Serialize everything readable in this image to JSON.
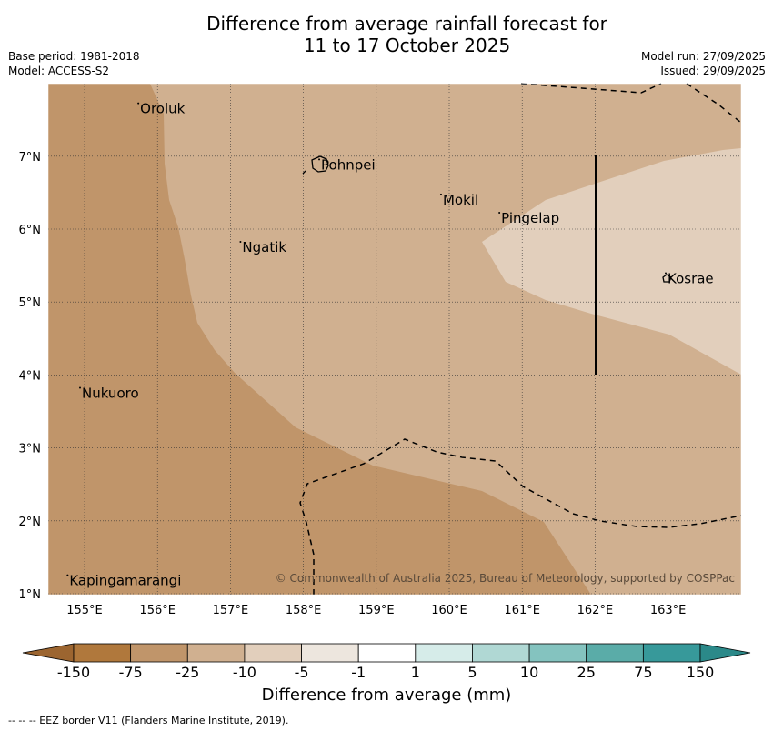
{
  "title_line1": "Difference from average rainfall forecast for",
  "title_line2": "11 to 17 October 2025",
  "meta_left": [
    "Base period: 1981-2018",
    "Model: ACCESS-S2"
  ],
  "meta_right": [
    "Model run: 27/09/2025",
    "Issued: 29/09/2025"
  ],
  "lon_ticks": [
    "155°E",
    "156°E",
    "157°E",
    "158°E",
    "159°E",
    "160°E",
    "161°E",
    "162°E",
    "163°E"
  ],
  "lat_ticks": [
    "7°N",
    "6°N",
    "5°N",
    "4°N",
    "3°N",
    "2°N",
    "1°N"
  ],
  "places": [
    {
      "name": "Oroluk",
      "lon": 155.75,
      "lat": 7.65
    },
    {
      "name": "Pohnpei",
      "lon": 158.23,
      "lat": 6.88
    },
    {
      "name": "Mokil",
      "lon": 159.9,
      "lat": 6.4
    },
    {
      "name": "Pingelap",
      "lon": 160.7,
      "lat": 6.15
    },
    {
      "name": "Ngatik",
      "lon": 157.15,
      "lat": 5.75
    },
    {
      "name": "Kosrae",
      "lon": 162.98,
      "lat": 5.32
    },
    {
      "name": "Nukuoro",
      "lon": 154.95,
      "lat": 3.75
    },
    {
      "name": "Kapingamarangi",
      "lon": 154.78,
      "lat": 1.18
    }
  ],
  "copyright": "© Commonwealth of Australia 2025, Bureau of Meteorology, supported by COSPPac",
  "colorbar": {
    "labels": [
      "-150",
      "-75",
      "-25",
      "-10",
      "-5",
      "-1",
      "1",
      "5",
      "10",
      "25",
      "75",
      "150"
    ],
    "colors": [
      "#b0783c",
      "#c0956a",
      "#d0b090",
      "#e2cfbc",
      "#ede6de",
      "#ffffff",
      "#d6ece9",
      "#b0d8d4",
      "#84c3bf",
      "#5aaca8",
      "#37999a"
    ],
    "extend_low_color": "#9c6530",
    "extend_high_color": "#2b8989",
    "title": "Difference from average (mm)"
  },
  "map_colors": {
    "band_-75_-25": "#c0956a",
    "band_-25_-10": "#d0b090",
    "band_-10_-5": "#e2cfbc"
  },
  "footer": "--  --  -- EEZ border V11 (Flanders Marine Institute, 2019)."
}
